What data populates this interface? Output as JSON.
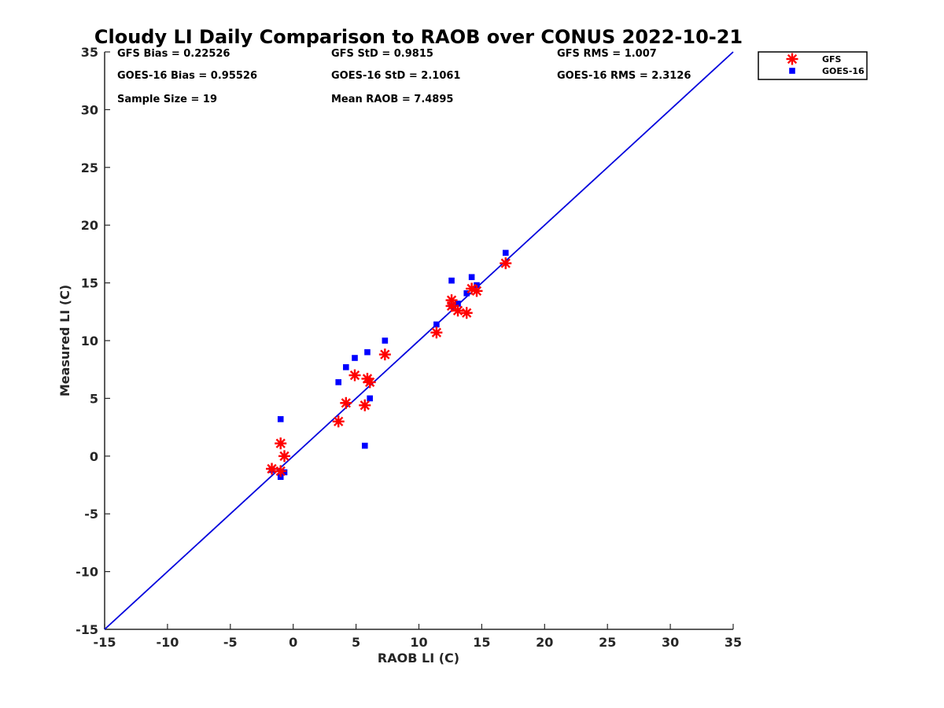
{
  "chart_data": {
    "type": "scatter",
    "title": "Cloudy LI Daily Comparison to RAOB over CONUS 2022-10-21",
    "xlabel": "RAOB LI (C)",
    "ylabel": "Measured LI (C)",
    "xlim": [
      -15,
      35
    ],
    "ylim": [
      -15,
      35
    ],
    "xticks": [
      "-15",
      "-10",
      "-5",
      "0",
      "5",
      "10",
      "15",
      "20",
      "25",
      "30",
      "35"
    ],
    "yticks": [
      "-15",
      "-10",
      "-5",
      "0",
      "5",
      "10",
      "15",
      "20",
      "25",
      "30",
      "35"
    ],
    "grid": false,
    "legend_position": "outside-top-right",
    "reference_line": {
      "from": [
        -15,
        -15
      ],
      "to": [
        35,
        35
      ],
      "color": "#0000dd"
    },
    "stats": {
      "gfs_bias": "GFS Bias = 0.22526",
      "goes_bias": "GOES-16 Bias = 0.95526",
      "sample_size": "Sample Size = 19",
      "gfs_std": "GFS StD = 0.9815",
      "goes_std": "GOES-16 StD = 2.1061",
      "mean_raob": "Mean RAOB = 7.4895",
      "gfs_rms": "GFS RMS = 1.007",
      "goes_rms": "GOES-16 RMS = 2.3126"
    },
    "series": [
      {
        "name": "GFS",
        "marker": "asterisk",
        "color": "#ff0000",
        "points": [
          [
            -1.7,
            -1.1
          ],
          [
            -1.0,
            -1.3
          ],
          [
            -1.0,
            1.1
          ],
          [
            -0.7,
            0.0
          ],
          [
            3.6,
            3.0
          ],
          [
            4.2,
            4.6
          ],
          [
            4.9,
            7.0
          ],
          [
            5.7,
            4.4
          ],
          [
            5.9,
            6.7
          ],
          [
            6.1,
            6.4
          ],
          [
            7.3,
            8.8
          ],
          [
            11.4,
            10.7
          ],
          [
            12.6,
            13.5
          ],
          [
            12.6,
            13.0
          ],
          [
            13.1,
            12.6
          ],
          [
            13.8,
            12.4
          ],
          [
            14.2,
            14.5
          ],
          [
            14.6,
            14.3
          ],
          [
            16.9,
            16.7
          ]
        ]
      },
      {
        "name": "GOES-16",
        "marker": "square",
        "color": "#0000ff",
        "points": [
          [
            -1.7,
            -1.2
          ],
          [
            -1.0,
            3.2
          ],
          [
            -1.0,
            -1.8
          ],
          [
            -0.7,
            -1.4
          ],
          [
            3.6,
            6.4
          ],
          [
            4.2,
            7.7
          ],
          [
            4.9,
            8.5
          ],
          [
            5.7,
            0.9
          ],
          [
            5.9,
            9.0
          ],
          [
            6.1,
            5.0
          ],
          [
            7.3,
            10.0
          ],
          [
            11.4,
            11.4
          ],
          [
            12.6,
            15.2
          ],
          [
            12.6,
            13.0
          ],
          [
            13.1,
            13.2
          ],
          [
            13.8,
            14.1
          ],
          [
            14.2,
            15.5
          ],
          [
            14.6,
            14.8
          ],
          [
            16.9,
            17.6
          ]
        ]
      }
    ]
  }
}
